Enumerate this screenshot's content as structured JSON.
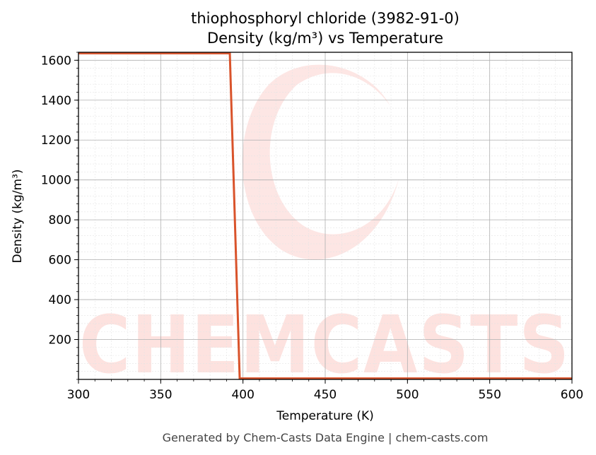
{
  "chart_data": {
    "type": "line",
    "title_line1": "thiophosphoryl chloride (3982-91-0)",
    "title_line2": "Density (kg/m³) vs Temperature",
    "xlabel": "Temperature (K)",
    "ylabel": "Density (kg/m³)",
    "xlim": [
      300,
      600
    ],
    "ylim": [
      0,
      1640
    ],
    "x_ticks": [
      300,
      350,
      400,
      450,
      500,
      550,
      600
    ],
    "y_ticks": [
      200,
      400,
      600,
      800,
      1000,
      1200,
      1400,
      1600
    ],
    "grid": true,
    "series": [
      {
        "color": "#d9532b",
        "x": [
          300,
          392,
          398,
          600
        ],
        "y": [
          1635,
          1635,
          5,
          5
        ]
      }
    ]
  },
  "watermark": {
    "text": "CHEMCASTS",
    "color": "#fde2df"
  },
  "footer": "Generated by Chem-Casts Data Engine | chem-casts.com"
}
